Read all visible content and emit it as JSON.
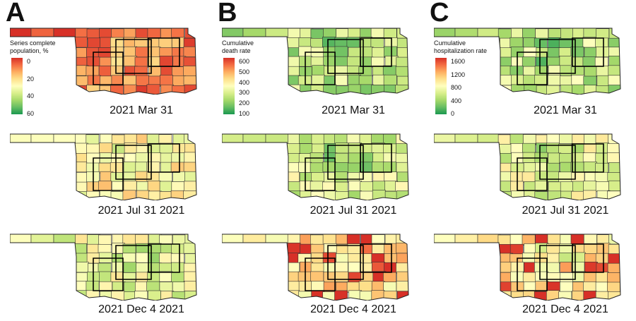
{
  "panels": [
    {
      "letter": "A",
      "legend": {
        "title": [
          "Series complete",
          "population, %"
        ],
        "ticks": [
          "0",
          "20",
          "40",
          "60"
        ],
        "colors": [
          "#d73027",
          "#f46d43",
          "#fdae61",
          "#fee08b",
          "#ffffbf",
          "#d9ef8b",
          "#a6d96a",
          "#66bd63",
          "#1a9850"
        ]
      },
      "maps": [
        {
          "label": "2021 Mar 31",
          "tone": 0.18
        },
        {
          "label": "2021  Jul 31 2021",
          "tone": 0.45
        },
        {
          "label": "2021 Dec 4 2021",
          "tone": 0.55
        }
      ]
    },
    {
      "letter": "B",
      "legend": {
        "title": [
          "Cumulative",
          "death rate"
        ],
        "ticks": [
          "600",
          "500",
          "400",
          "300",
          "200",
          "100"
        ],
        "colors": [
          "#d73027",
          "#f46d43",
          "#fdae61",
          "#fee08b",
          "#ffffbf",
          "#d9ef8b",
          "#a6d96a",
          "#66bd63",
          "#1a9850"
        ]
      },
      "maps": [
        {
          "label": "2021 Mar 31",
          "tone": 0.68
        },
        {
          "label": "2021  Jul 31 2021",
          "tone": 0.6
        },
        {
          "label": "2021 Dec 4 2021",
          "tone": 0.38
        }
      ]
    },
    {
      "letter": "C",
      "legend": {
        "title": [
          "Cumulative",
          "hospitalization rate"
        ],
        "ticks": [
          "1600",
          "1200",
          "800",
          "400",
          "0"
        ],
        "colors": [
          "#d73027",
          "#f46d43",
          "#fdae61",
          "#fee08b",
          "#ffffbf",
          "#d9ef8b",
          "#a6d96a",
          "#66bd63",
          "#1a9850"
        ]
      },
      "maps": [
        {
          "label": "2021 Mar 31",
          "tone": 0.66
        },
        {
          "label": "2021  Jul 31 2021",
          "tone": 0.56
        },
        {
          "label": "2021 Dec 4 2021",
          "tone": 0.4
        }
      ]
    }
  ]
}
